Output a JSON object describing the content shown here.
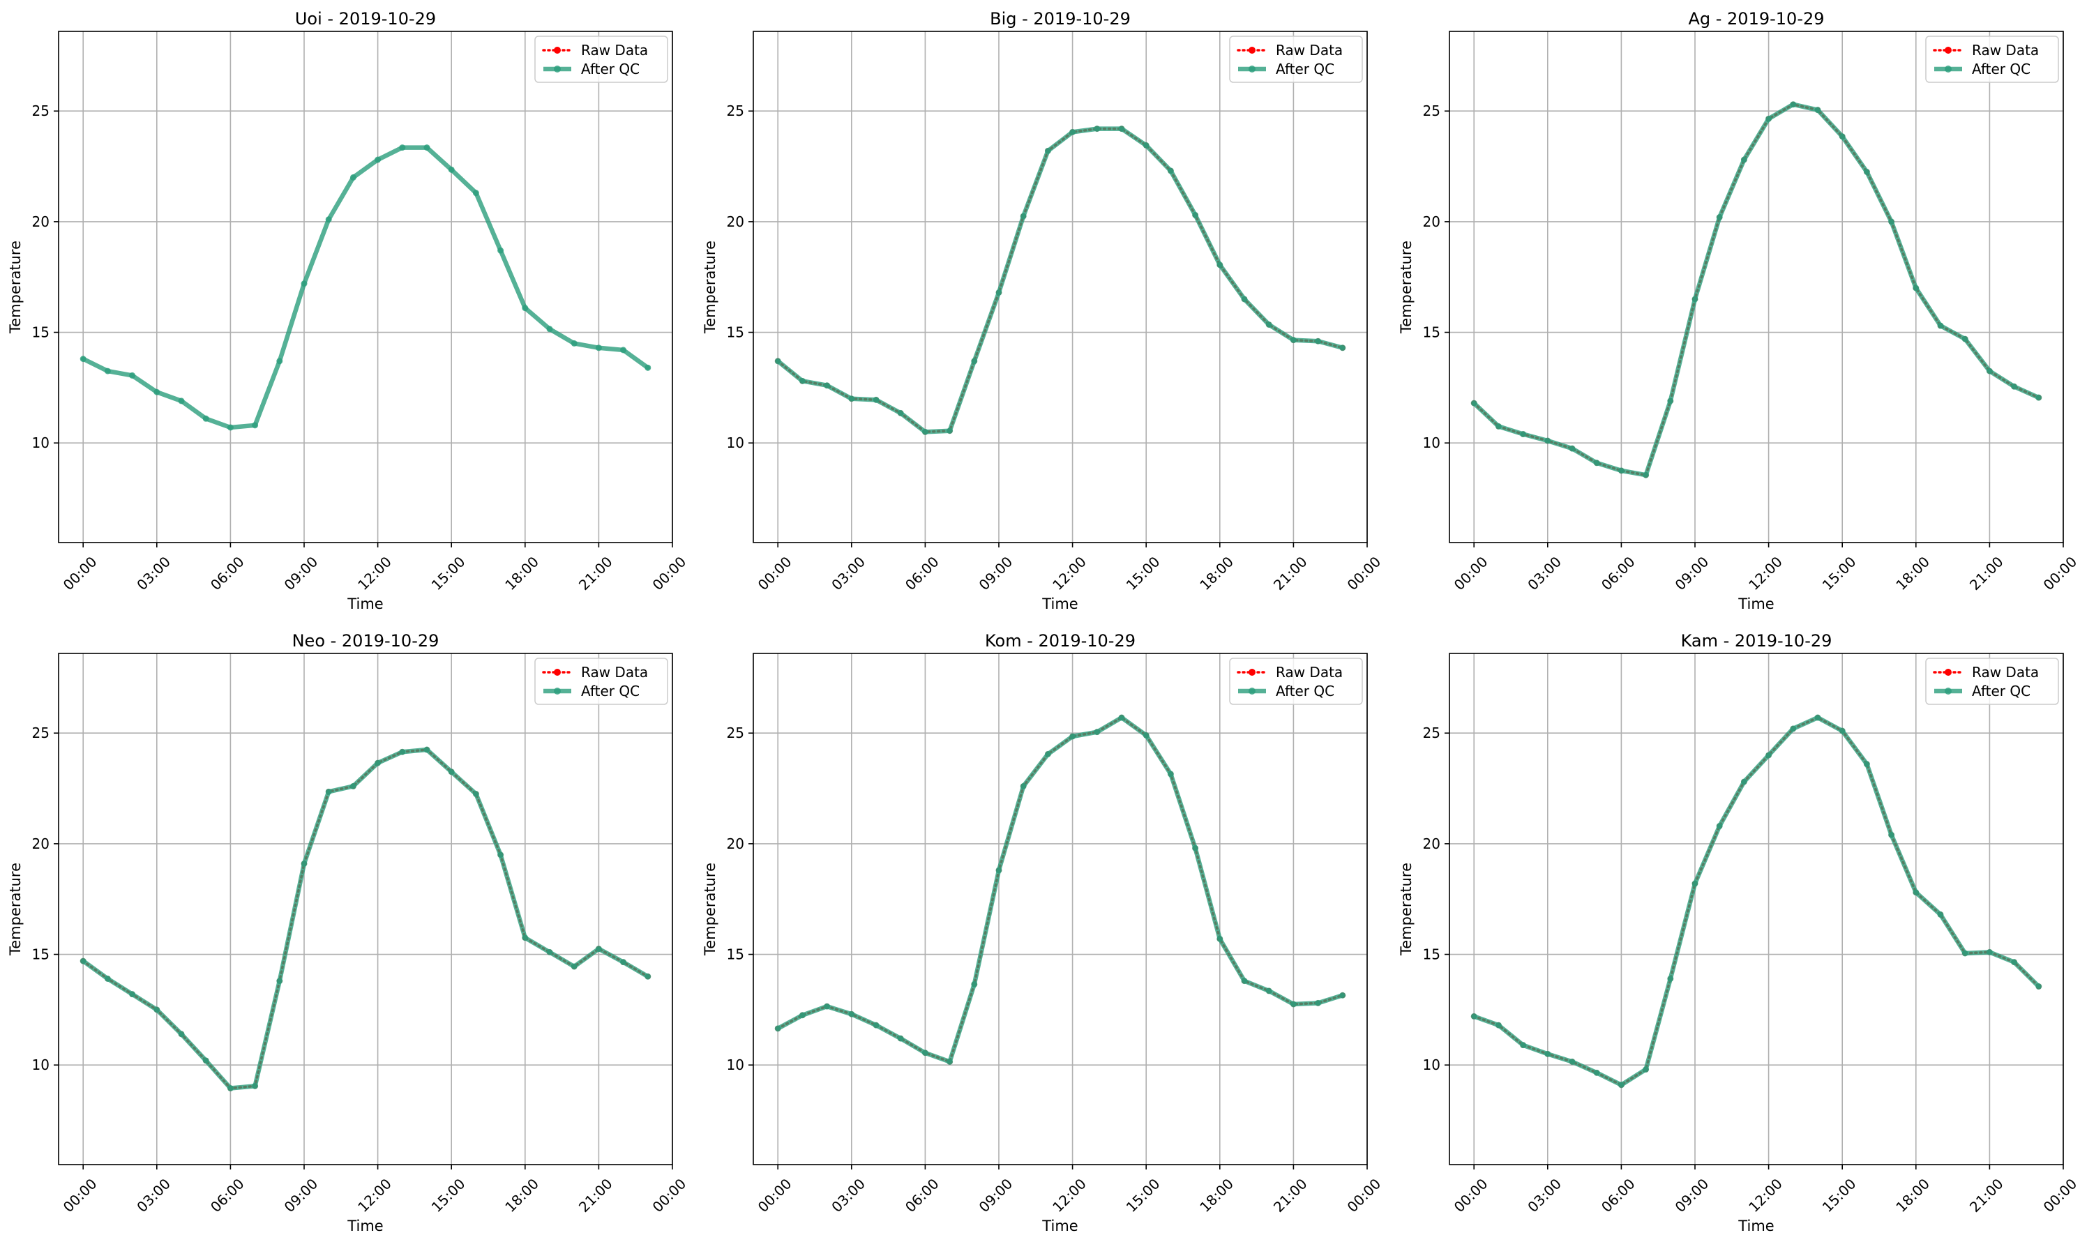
{
  "colors": {
    "raw": "#ff0000",
    "qc": "#2a9d7c",
    "qc_line_overlap": "#4a7a5f",
    "grid": "#b0b0b0",
    "axes": "#000000"
  },
  "legend": {
    "raw_label": "Raw Data",
    "qc_label": "After QC",
    "placement": "top-right"
  },
  "chart_data": [
    {
      "type": "line",
      "title": "Uoi - 2019-10-29",
      "xlabel": "Time",
      "ylabel": "Temperature",
      "grid": true,
      "ylim": [
        5.5,
        28.6
      ],
      "xlim": [
        -1.0,
        24.0
      ],
      "xticks": [
        0,
        3,
        6,
        9,
        12,
        15,
        18,
        21,
        24
      ],
      "xticklabels": [
        "00:00",
        "03:00",
        "06:00",
        "09:00",
        "12:00",
        "15:00",
        "18:00",
        "21:00",
        "00:00"
      ],
      "yticks": [
        10,
        15,
        20,
        25
      ],
      "yticklabels": [
        "10",
        "15",
        "20",
        "25"
      ],
      "x": [
        0,
        1,
        2,
        3,
        4,
        5,
        6,
        7,
        8,
        9,
        10,
        11,
        12,
        13,
        14,
        15,
        16,
        17,
        18,
        19,
        20,
        21,
        22,
        23
      ],
      "series": [
        {
          "name": "Raw Data",
          "values": [
            null,
            null,
            null,
            null,
            null,
            null,
            null,
            null,
            null,
            null,
            null,
            null,
            null,
            null,
            null,
            null,
            null,
            null,
            null,
            null,
            null,
            null,
            null,
            null
          ]
        },
        {
          "name": "After QC",
          "values": [
            13.8,
            13.25,
            13.05,
            12.3,
            11.9,
            11.1,
            10.7,
            10.8,
            13.7,
            17.2,
            20.1,
            22.0,
            22.8,
            23.35,
            23.35,
            22.35,
            21.3,
            18.7,
            16.1,
            15.15,
            14.5,
            14.3,
            14.2,
            13.4
          ]
        }
      ]
    },
    {
      "type": "line",
      "title": "Big - 2019-10-29",
      "xlabel": "Time",
      "ylabel": "Temperature",
      "grid": true,
      "ylim": [
        5.5,
        28.6
      ],
      "xlim": [
        -1.0,
        24.0
      ],
      "xticks": [
        0,
        3,
        6,
        9,
        12,
        15,
        18,
        21,
        24
      ],
      "xticklabels": [
        "00:00",
        "03:00",
        "06:00",
        "09:00",
        "12:00",
        "15:00",
        "18:00",
        "21:00",
        "00:00"
      ],
      "yticks": [
        10,
        15,
        20,
        25
      ],
      "yticklabels": [
        "10",
        "15",
        "20",
        "25"
      ],
      "x": [
        0,
        1,
        2,
        3,
        4,
        5,
        6,
        7,
        8,
        9,
        10,
        11,
        12,
        13,
        14,
        15,
        16,
        17,
        18,
        19,
        20,
        21,
        22,
        23
      ],
      "series": [
        {
          "name": "Raw Data",
          "values": [
            13.7,
            12.8,
            12.6,
            12.0,
            11.95,
            11.35,
            10.5,
            10.55,
            13.7,
            16.8,
            20.25,
            23.2,
            24.05,
            24.2,
            24.2,
            23.45,
            22.3,
            20.3,
            18.05,
            16.5,
            15.35,
            14.65,
            14.6,
            14.3
          ]
        },
        {
          "name": "After QC",
          "values": [
            13.7,
            12.8,
            12.6,
            12.0,
            11.95,
            11.35,
            10.5,
            10.55,
            13.7,
            16.8,
            20.25,
            23.2,
            24.05,
            24.2,
            24.2,
            23.45,
            22.3,
            20.3,
            18.05,
            16.5,
            15.35,
            14.65,
            14.6,
            14.3
          ]
        }
      ]
    },
    {
      "type": "line",
      "title": "Ag - 2019-10-29",
      "xlabel": "Time",
      "ylabel": "Temperature",
      "grid": true,
      "ylim": [
        5.5,
        28.6
      ],
      "xlim": [
        -1.0,
        24.0
      ],
      "xticks": [
        0,
        3,
        6,
        9,
        12,
        15,
        18,
        21,
        24
      ],
      "xticklabels": [
        "00:00",
        "03:00",
        "06:00",
        "09:00",
        "12:00",
        "15:00",
        "18:00",
        "21:00",
        "00:00"
      ],
      "yticks": [
        10,
        15,
        20,
        25
      ],
      "yticklabels": [
        "10",
        "15",
        "20",
        "25"
      ],
      "x": [
        0,
        1,
        2,
        3,
        4,
        5,
        6,
        7,
        8,
        9,
        10,
        11,
        12,
        13,
        14,
        15,
        16,
        17,
        18,
        19,
        20,
        21,
        22,
        23
      ],
      "series": [
        {
          "name": "Raw Data",
          "values": [
            11.8,
            10.75,
            10.4,
            10.1,
            9.75,
            9.1,
            8.75,
            8.55,
            11.9,
            16.5,
            20.2,
            22.8,
            24.65,
            25.3,
            25.05,
            23.85,
            22.25,
            20.0,
            17.0,
            15.3,
            14.7,
            13.25,
            12.55,
            12.05
          ]
        },
        {
          "name": "After QC",
          "values": [
            11.8,
            10.75,
            10.4,
            10.1,
            9.75,
            9.1,
            8.75,
            8.55,
            11.9,
            16.5,
            20.2,
            22.8,
            24.65,
            25.3,
            25.05,
            23.85,
            22.25,
            20.0,
            17.0,
            15.3,
            14.7,
            13.25,
            12.55,
            12.05
          ]
        }
      ]
    },
    {
      "type": "line",
      "title": "Neo - 2019-10-29",
      "xlabel": "Time",
      "ylabel": "Temperature",
      "grid": true,
      "ylim": [
        5.5,
        28.6
      ],
      "xlim": [
        -1.0,
        24.0
      ],
      "xticks": [
        0,
        3,
        6,
        9,
        12,
        15,
        18,
        21,
        24
      ],
      "xticklabels": [
        "00:00",
        "03:00",
        "06:00",
        "09:00",
        "12:00",
        "15:00",
        "18:00",
        "21:00",
        "00:00"
      ],
      "yticks": [
        10,
        15,
        20,
        25
      ],
      "yticklabels": [
        "10",
        "15",
        "20",
        "25"
      ],
      "x": [
        0,
        1,
        2,
        3,
        4,
        5,
        6,
        7,
        8,
        9,
        10,
        11,
        12,
        13,
        14,
        15,
        16,
        17,
        18,
        19,
        20,
        21,
        22,
        23
      ],
      "series": [
        {
          "name": "Raw Data",
          "values": [
            14.7,
            13.9,
            13.2,
            12.5,
            11.4,
            10.2,
            8.95,
            9.05,
            13.8,
            19.1,
            22.35,
            22.6,
            23.65,
            24.15,
            24.25,
            23.25,
            22.25,
            19.5,
            15.75,
            15.1,
            14.45,
            15.25,
            14.65,
            14.0
          ]
        },
        {
          "name": "After QC",
          "values": [
            14.7,
            13.9,
            13.2,
            12.5,
            11.4,
            10.2,
            8.95,
            9.05,
            13.8,
            19.1,
            22.35,
            22.6,
            23.65,
            24.15,
            24.25,
            23.25,
            22.25,
            19.5,
            15.75,
            15.1,
            14.45,
            15.25,
            14.65,
            14.0
          ]
        }
      ]
    },
    {
      "type": "line",
      "title": "Kom - 2019-10-29",
      "xlabel": "Time",
      "ylabel": "Temperature",
      "grid": true,
      "ylim": [
        5.5,
        28.6
      ],
      "xlim": [
        -1.0,
        24.0
      ],
      "xticks": [
        0,
        3,
        6,
        9,
        12,
        15,
        18,
        21,
        24
      ],
      "xticklabels": [
        "00:00",
        "03:00",
        "06:00",
        "09:00",
        "12:00",
        "15:00",
        "18:00",
        "21:00",
        "00:00"
      ],
      "yticks": [
        10,
        15,
        20,
        25
      ],
      "yticklabels": [
        "10",
        "15",
        "20",
        "25"
      ],
      "x": [
        0,
        1,
        2,
        3,
        4,
        5,
        6,
        7,
        8,
        9,
        10,
        11,
        12,
        13,
        14,
        15,
        16,
        17,
        18,
        19,
        20,
        21,
        22,
        23
      ],
      "series": [
        {
          "name": "Raw Data",
          "values": [
            11.65,
            12.25,
            12.65,
            12.3,
            11.8,
            11.2,
            10.55,
            10.15,
            13.65,
            18.8,
            22.6,
            24.05,
            24.85,
            25.05,
            25.7,
            24.9,
            23.15,
            19.8,
            15.7,
            13.8,
            13.35,
            12.75,
            12.8,
            13.15
          ]
        },
        {
          "name": "After QC",
          "values": [
            11.65,
            12.25,
            12.65,
            12.3,
            11.8,
            11.2,
            10.55,
            10.15,
            13.65,
            18.8,
            22.6,
            24.05,
            24.85,
            25.05,
            25.7,
            24.9,
            23.15,
            19.8,
            15.7,
            13.8,
            13.35,
            12.75,
            12.8,
            13.15
          ]
        }
      ]
    },
    {
      "type": "line",
      "title": "Kam - 2019-10-29",
      "xlabel": "Time",
      "ylabel": "Temperature",
      "grid": true,
      "ylim": [
        5.5,
        28.6
      ],
      "xlim": [
        -1.0,
        24.0
      ],
      "xticks": [
        0,
        3,
        6,
        9,
        12,
        15,
        18,
        21,
        24
      ],
      "xticklabels": [
        "00:00",
        "03:00",
        "06:00",
        "09:00",
        "12:00",
        "15:00",
        "18:00",
        "21:00",
        "00:00"
      ],
      "yticks": [
        10,
        15,
        20,
        25
      ],
      "yticklabels": [
        "10",
        "15",
        "20",
        "25"
      ],
      "x": [
        0,
        1,
        2,
        3,
        4,
        5,
        6,
        7,
        8,
        9,
        10,
        11,
        12,
        13,
        14,
        15,
        16,
        17,
        18,
        19,
        20,
        21,
        22,
        23
      ],
      "series": [
        {
          "name": "Raw Data",
          "values": [
            12.2,
            11.8,
            10.9,
            10.5,
            10.15,
            9.65,
            9.1,
            9.8,
            13.9,
            18.2,
            20.8,
            22.8,
            24.0,
            25.2,
            25.7,
            25.1,
            23.6,
            20.4,
            17.8,
            16.8,
            15.05,
            15.1,
            14.65,
            13.55
          ]
        },
        {
          "name": "After QC",
          "values": [
            12.2,
            11.8,
            10.9,
            10.5,
            10.15,
            9.65,
            9.1,
            9.8,
            13.9,
            18.2,
            20.8,
            22.8,
            24.0,
            25.2,
            25.7,
            25.1,
            23.6,
            20.4,
            17.8,
            16.8,
            15.05,
            15.1,
            14.65,
            13.55
          ]
        }
      ]
    }
  ]
}
